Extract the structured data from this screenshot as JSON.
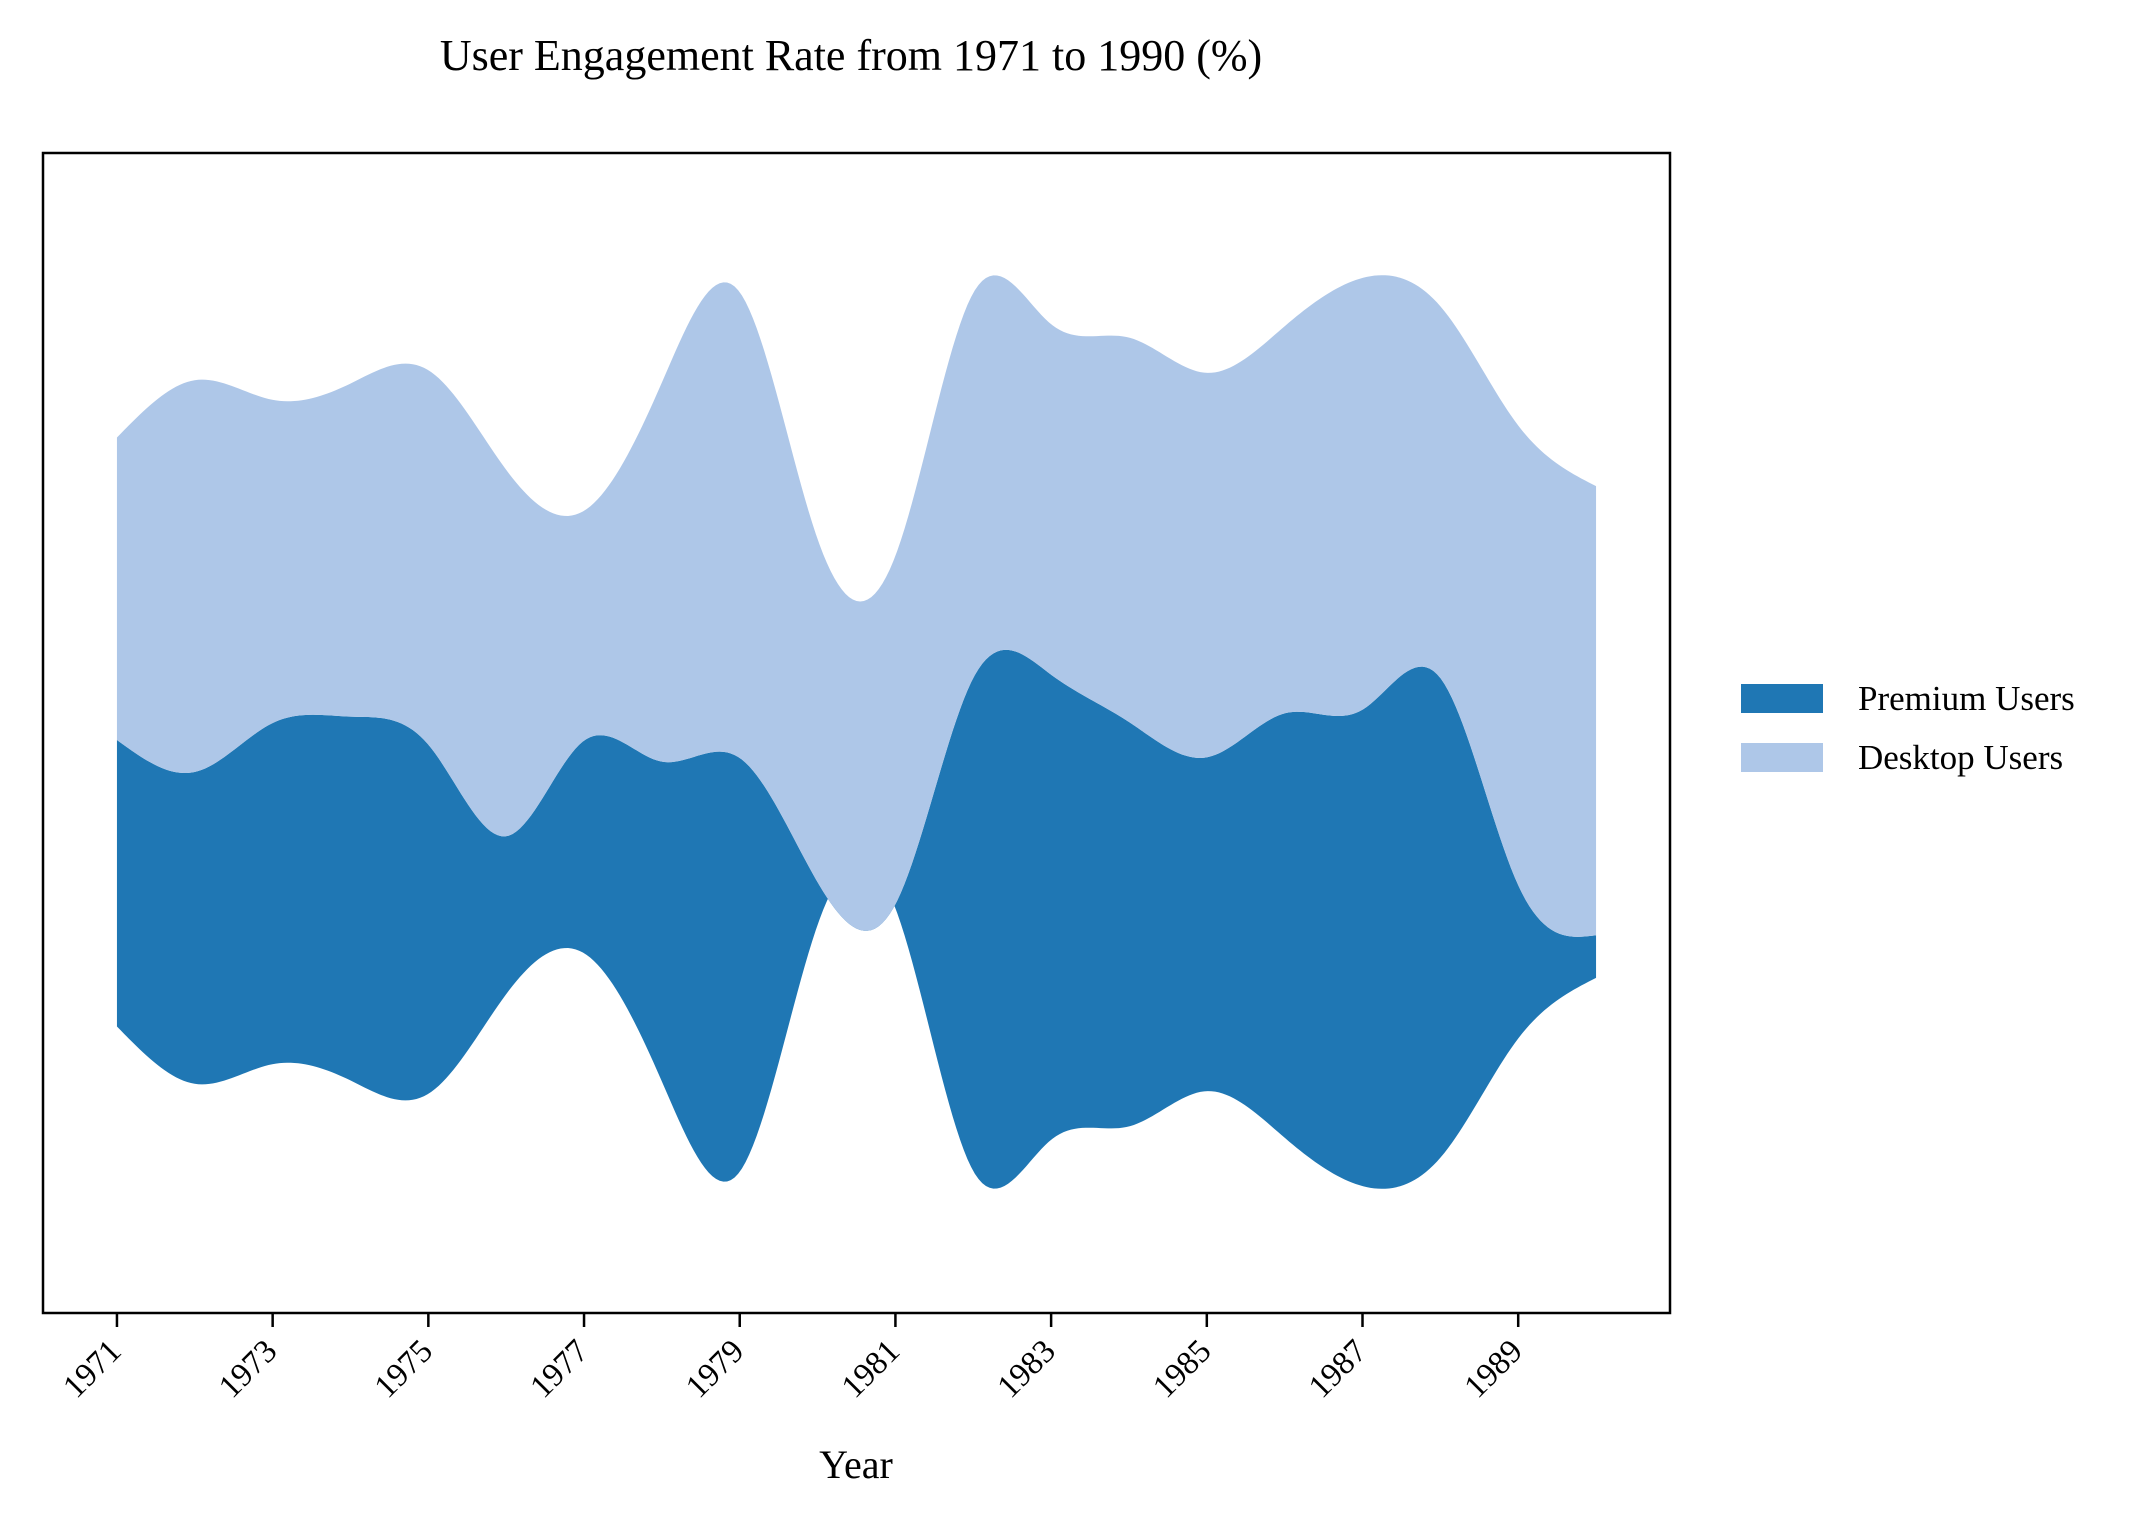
{
  "chart_data": {
    "type": "area",
    "subtype": "streamgraph",
    "title": "User Engagement Rate from 1971 to 1990 (%)",
    "xlabel": "Year",
    "ylabel": "",
    "x": [
      1971,
      1972,
      1973,
      1974,
      1975,
      1976,
      1977,
      1978,
      1979,
      1980,
      1981,
      1982,
      1983,
      1984,
      1985,
      1986,
      1987,
      1988,
      1989,
      1990
    ],
    "x_ticks": [
      "1971",
      "1973",
      "1975",
      "1977",
      "1979",
      "1981",
      "1983",
      "1985",
      "1987",
      "1989"
    ],
    "xlim": [
      1970.05,
      1990.95
    ],
    "ylim": [
      -87.2,
      86.9
    ],
    "y_axis_visible": false,
    "grid": false,
    "legend_position": "right",
    "series": [
      {
        "name": "Premium Users",
        "color": "#1f77b4",
        "values": [
          43.0,
          46.8,
          51.2,
          54.6,
          52.4,
          23.7,
          31.9,
          48.0,
          62.1,
          6.4,
          0.6,
          74.0,
          69.8,
          60.7,
          50.1,
          63.7,
          71.5,
          72.0,
          23.0,
          6.4
        ]
      },
      {
        "name": "Desktop Users",
        "color": "#aec7e8",
        "values": [
          45.4,
          58.8,
          48.5,
          50.0,
          56.2,
          55.0,
          34.5,
          56.9,
          69.9,
          51.5,
          52.3,
          57.8,
          52.6,
          57.7,
          57.7,
          58.1,
          64.8,
          55.8,
          69.0,
          67.4
        ]
      }
    ]
  }
}
